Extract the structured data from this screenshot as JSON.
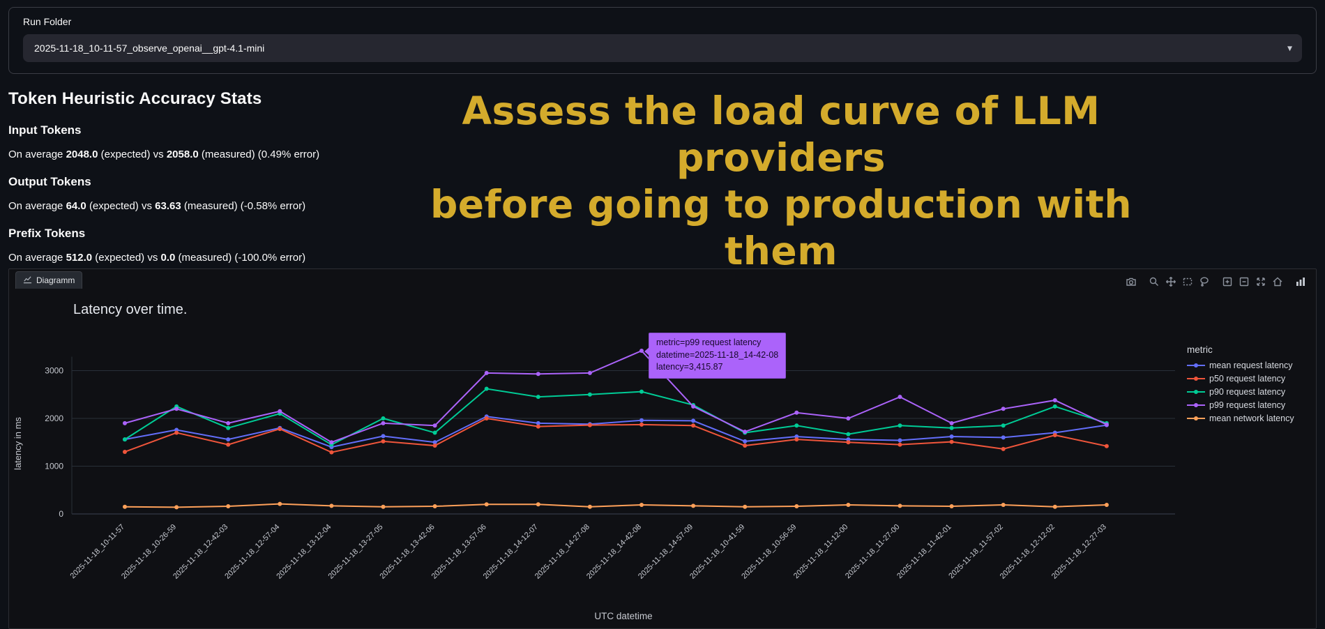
{
  "run_folder": {
    "label": "Run Folder",
    "selected": "2025-11-18_10-11-57_observe_openai__gpt-4.1-mini"
  },
  "stats": {
    "title": "Token Heuristic Accuracy Stats",
    "sections": [
      {
        "label": "Input Tokens",
        "prefix": "On average",
        "expected": "2048.0",
        "mid": "(expected) vs",
        "measured": "2058.0",
        "suffix": "(measured) (0.49% error)"
      },
      {
        "label": "Output Tokens",
        "prefix": "On average",
        "expected": "64.0",
        "mid": "(expected) vs",
        "measured": "63.63",
        "suffix": "(measured) (-0.58% error)"
      },
      {
        "label": "Prefix Tokens",
        "prefix": "On average",
        "expected": "512.0",
        "mid": "(expected) vs",
        "measured": "0.0",
        "suffix": "(measured) (-100.0% error)"
      }
    ]
  },
  "banner": {
    "line1": "Assess the load curve of LLM providers",
    "line2": "before going to production with them",
    "color": "#d4ab2c"
  },
  "panel": {
    "tab_label": "Diagramm",
    "modebar_icons": [
      "camera",
      "zoom",
      "pan",
      "box-select",
      "lasso-select",
      "zoom-in",
      "zoom-out",
      "autoscale",
      "reset-axes",
      "plotly-logo"
    ],
    "tooltip": {
      "lines": [
        "metric=p99 request latency",
        "datetime=2025-11-18_14-42-08",
        "latency=3,415.87"
      ],
      "color": "#ab63fa"
    }
  },
  "chart_data": {
    "type": "line",
    "title": "Latency over time.",
    "xlabel": "UTC datetime",
    "ylabel": "latency in ms",
    "legend_title": "metric",
    "grid": true,
    "legend_position": "right",
    "ylim": [
      0,
      3600
    ],
    "yticks": [
      0,
      1000,
      2000,
      3000
    ],
    "categories": [
      "2025-11-18_10-11-57",
      "2025-11-18_10-26-59",
      "2025-11-18_12-42-03",
      "2025-11-18_12-57-04",
      "2025-11-18_13-12-04",
      "2025-11-18_13-27-05",
      "2025-11-18_13-42-06",
      "2025-11-18_13-57-06",
      "2025-11-18_14-12-07",
      "2025-11-18_14-27-08",
      "2025-11-18_14-42-08",
      "2025-11-18_14-57-09",
      "2025-11-18_10-41-59",
      "2025-11-18_10-56-59",
      "2025-11-18_11-12-00",
      "2025-11-18_11-27-00",
      "2025-11-18_11-42-01",
      "2025-11-18_11-57-02",
      "2025-11-18_12-12-02",
      "2025-11-18_12-27-03"
    ],
    "series": [
      {
        "name": "mean request latency",
        "color": "#636efa",
        "values": [
          1560,
          1760,
          1560,
          1800,
          1400,
          1630,
          1500,
          2040,
          1900,
          1880,
          1960,
          1950,
          1520,
          1620,
          1560,
          1540,
          1620,
          1600,
          1700,
          1860
        ]
      },
      {
        "name": "p50 request latency",
        "color": "#EF553B",
        "values": [
          1300,
          1700,
          1450,
          1780,
          1290,
          1520,
          1430,
          2000,
          1830,
          1860,
          1870,
          1850,
          1430,
          1560,
          1500,
          1450,
          1510,
          1360,
          1650,
          1420
        ]
      },
      {
        "name": "p90 request latency",
        "color": "#00cc96",
        "values": [
          1560,
          2250,
          1800,
          2100,
          1450,
          2000,
          1700,
          2620,
          2450,
          2500,
          2560,
          2280,
          1700,
          1850,
          1670,
          1850,
          1800,
          1850,
          2250,
          1900
        ]
      },
      {
        "name": "p99 request latency",
        "color": "#ab63fa",
        "values": [
          1900,
          2200,
          1900,
          2150,
          1500,
          1900,
          1850,
          2950,
          2930,
          2950,
          3415.87,
          2250,
          1720,
          2120,
          2000,
          2450,
          1900,
          2200,
          2380,
          1870
        ]
      },
      {
        "name": "mean network latency",
        "color": "#FFA15A",
        "values": [
          150,
          140,
          160,
          210,
          170,
          150,
          160,
          200,
          200,
          150,
          190,
          170,
          150,
          160,
          190,
          170,
          160,
          190,
          150,
          190
        ]
      }
    ],
    "hover_point": {
      "series": "p99 request latency",
      "index": 10,
      "value": 3415.87
    }
  }
}
